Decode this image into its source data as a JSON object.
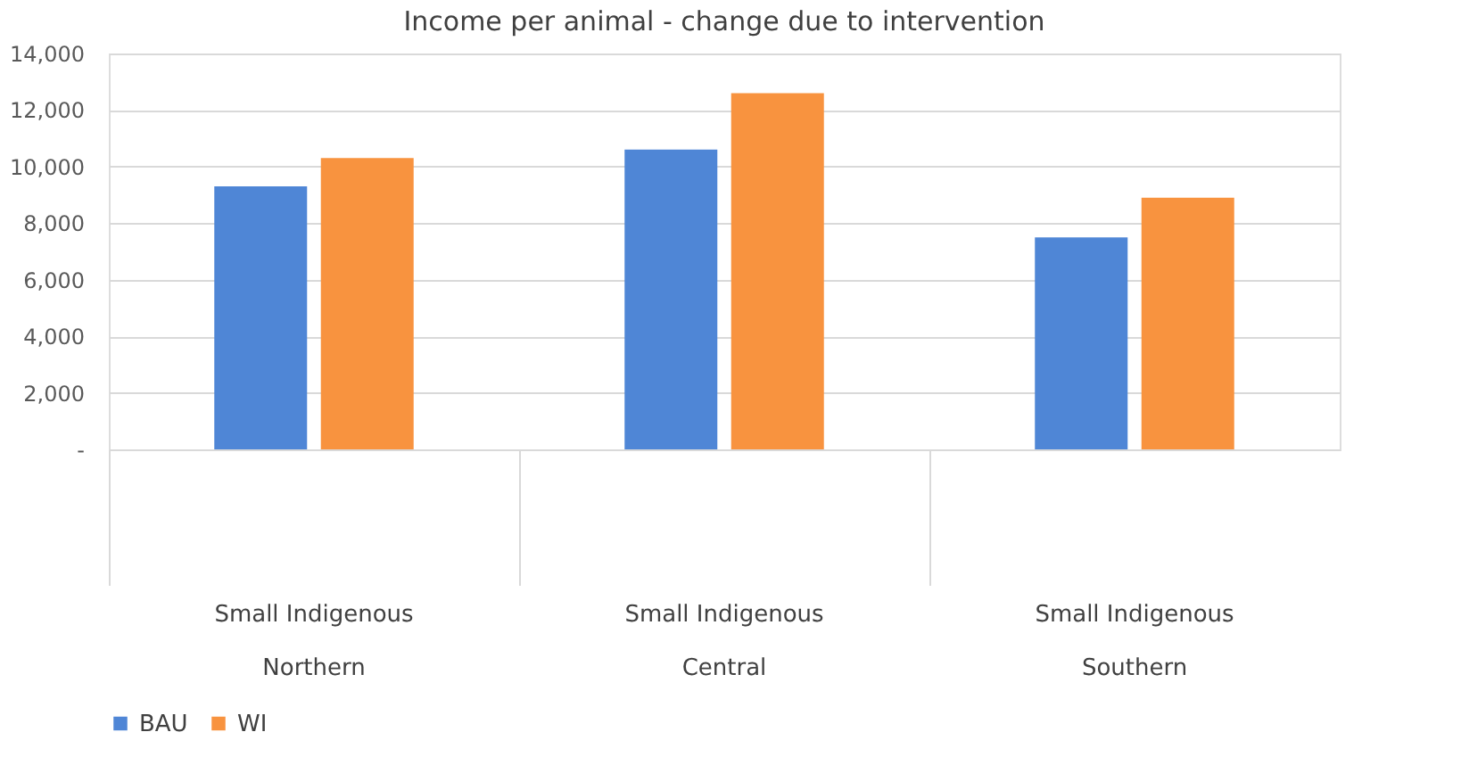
{
  "chart_data": {
    "type": "bar",
    "title": "Income per animal - change due to intervention",
    "categories": [
      "Small Indigenous\nNorthern",
      "Small Indigenous\nCentral",
      "Small Indigenous\nSouthern"
    ],
    "series": [
      {
        "name": "BAU",
        "color": "#4f86d6",
        "values": [
          9300,
          10600,
          7500
        ]
      },
      {
        "name": "WI",
        "color": "#f8933f",
        "values": [
          10300,
          12600,
          8900
        ]
      }
    ],
    "ylim": [
      0,
      14000
    ],
    "yticks": [
      {
        "value": 0,
        "label": "-"
      },
      {
        "value": 2000,
        "label": "2,000"
      },
      {
        "value": 4000,
        "label": "4,000"
      },
      {
        "value": 6000,
        "label": "6,000"
      },
      {
        "value": 8000,
        "label": "8,000"
      },
      {
        "value": 10000,
        "label": "10,000"
      },
      {
        "value": 12000,
        "label": "12,000"
      },
      {
        "value": 14000,
        "label": "14,000"
      }
    ],
    "grid": "y",
    "legend": "bottom"
  }
}
